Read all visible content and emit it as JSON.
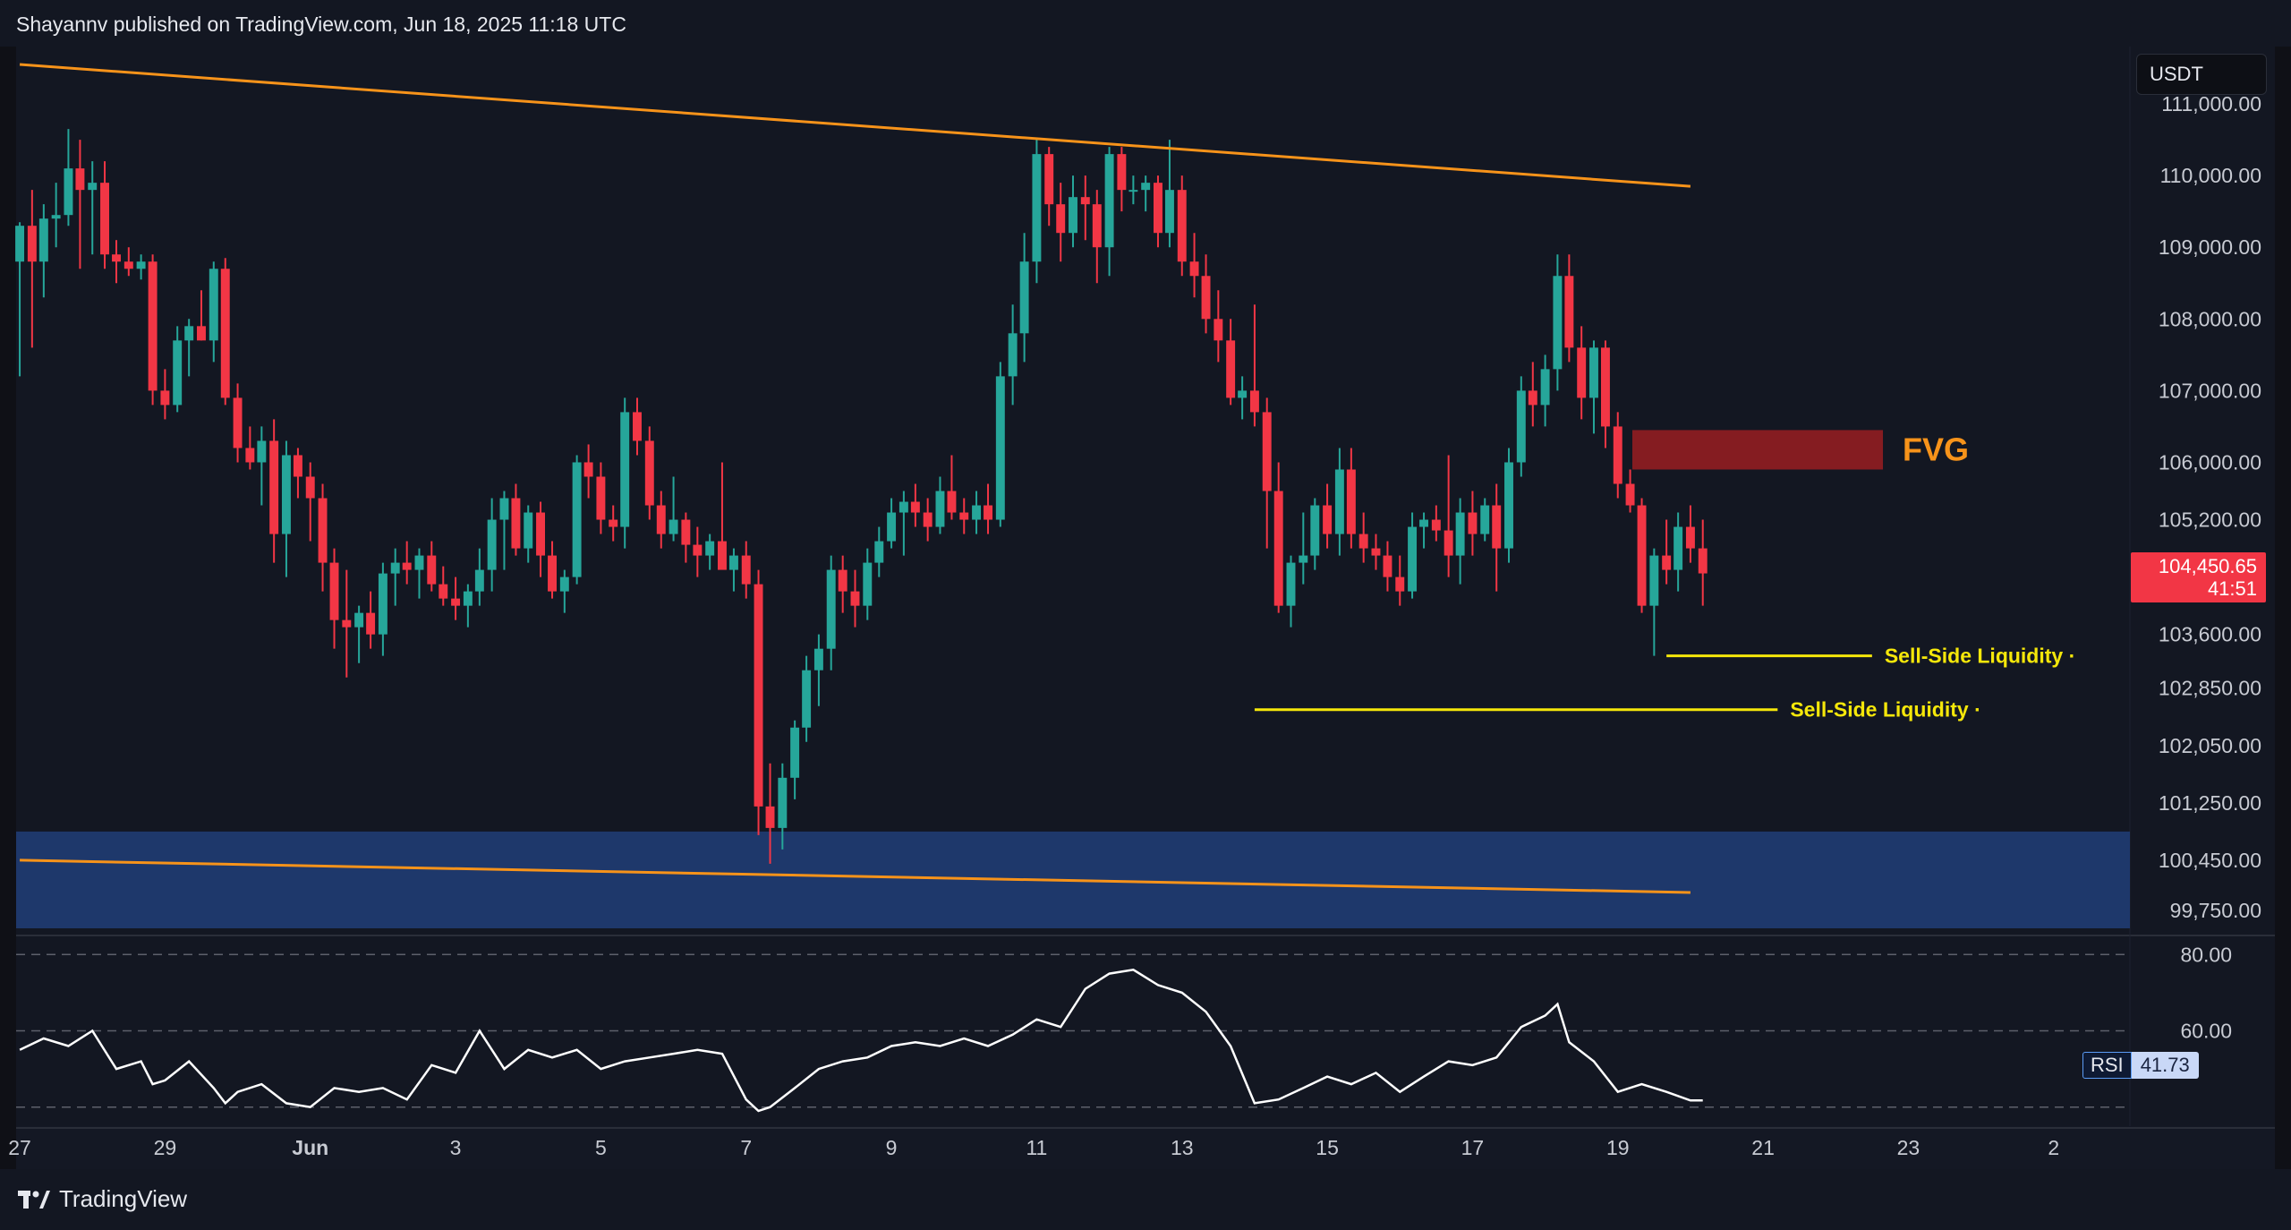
{
  "header": {
    "publisher_text": "Shayannv published on TradingView.com, Jun 18, 2025 11:18 UTC"
  },
  "footer": {
    "brand": "TradingView"
  },
  "price_scale": {
    "currency": "USDT",
    "last_price": "104,450.65",
    "countdown": "41:51"
  },
  "rsi": {
    "label": "RSI",
    "value": "41.73"
  },
  "annotations": {
    "fvg_label": "FVG",
    "liquidity_label_1": "Sell-Side Liquidity",
    "liquidity_label_2": "Sell-Side Liquidity"
  },
  "colors": {
    "up": "#26a69a",
    "down": "#f23645",
    "trendline": "#f7931a",
    "liquidity_line": "#f5e70a",
    "support_zone": "#1f3a70",
    "fvg_zone": "#8b1c22",
    "rsi_line": "#ffffff"
  },
  "chart_data": {
    "type": "candlestick",
    "x_axis": {
      "tick_labels": [
        "27",
        "29",
        "Jun",
        "3",
        "5",
        "7",
        "9",
        "11",
        "13",
        "15",
        "17",
        "19",
        "21",
        "23",
        "2"
      ],
      "tick_days": [
        -4,
        -2,
        0,
        2,
        4,
        6,
        8,
        10,
        12,
        14,
        16,
        18,
        20,
        22,
        24
      ],
      "domain_days": [
        -4.05,
        25.05
      ],
      "month_label_style": "bold"
    },
    "y_axis": {
      "tick_labels": [
        "111,000.00",
        "110,000.00",
        "109,000.00",
        "108,000.00",
        "107,000.00",
        "106,000.00",
        "105,200.00",
        "104,450.65",
        "103,600.00",
        "102,850.00",
        "102,050.00",
        "101,250.00",
        "100,450.00",
        "99,750.00"
      ],
      "tick_values": [
        111000,
        110000,
        109000,
        108000,
        107000,
        106000,
        105200,
        104450.65,
        103600,
        102850,
        102050,
        101250,
        100450,
        99750
      ],
      "range": [
        99400,
        111800
      ]
    },
    "candles": [
      [
        -4.0,
        108800,
        109350,
        107200,
        109300
      ],
      [
        -3.83,
        109300,
        109800,
        107600,
        108800
      ],
      [
        -3.67,
        108800,
        109600,
        108300,
        109400
      ],
      [
        -3.5,
        109400,
        109900,
        109000,
        109450
      ],
      [
        -3.33,
        109450,
        110650,
        109300,
        110100
      ],
      [
        -3.17,
        110100,
        110500,
        108700,
        109800
      ],
      [
        -3.0,
        109800,
        110200,
        108900,
        109900
      ],
      [
        -2.83,
        109900,
        110200,
        108700,
        108900
      ],
      [
        -2.67,
        108900,
        109100,
        108500,
        108800
      ],
      [
        -2.5,
        108800,
        109000,
        108600,
        108700
      ],
      [
        -2.33,
        108700,
        108900,
        108550,
        108800
      ],
      [
        -2.17,
        108800,
        108900,
        106800,
        107000
      ],
      [
        -2.0,
        107000,
        107300,
        106600,
        106800
      ],
      [
        -1.83,
        106800,
        107900,
        106700,
        107700
      ],
      [
        -1.67,
        107700,
        108000,
        107200,
        107900
      ],
      [
        -1.5,
        107900,
        108400,
        107700,
        107700
      ],
      [
        -1.33,
        107700,
        108800,
        107400,
        108700
      ],
      [
        -1.17,
        108700,
        108850,
        106800,
        106900
      ],
      [
        -1.0,
        106900,
        107100,
        106000,
        106200
      ],
      [
        -0.83,
        106200,
        106500,
        105900,
        106000
      ],
      [
        -0.67,
        106000,
        106500,
        105400,
        106300
      ],
      [
        -0.5,
        106300,
        106600,
        104600,
        105000
      ],
      [
        -0.33,
        105000,
        106300,
        104400,
        106100
      ],
      [
        -0.17,
        106100,
        106200,
        105500,
        105800
      ],
      [
        0.0,
        105800,
        106000,
        104900,
        105500
      ],
      [
        0.17,
        105500,
        105700,
        104200,
        104600
      ],
      [
        0.33,
        104600,
        104800,
        103400,
        103800
      ],
      [
        0.5,
        103800,
        104500,
        103000,
        103700
      ],
      [
        0.67,
        103700,
        104000,
        103200,
        103900
      ],
      [
        0.83,
        103900,
        104200,
        103400,
        103600
      ],
      [
        1.0,
        103600,
        104600,
        103300,
        104450
      ],
      [
        1.17,
        104450,
        104800,
        104000,
        104600
      ],
      [
        1.33,
        104600,
        104900,
        104300,
        104500
      ],
      [
        1.5,
        104500,
        104800,
        104100,
        104700
      ],
      [
        1.67,
        104700,
        104900,
        104200,
        104300
      ],
      [
        1.83,
        104300,
        104550,
        104000,
        104100
      ],
      [
        2.0,
        104100,
        104400,
        103800,
        104000
      ],
      [
        2.17,
        104000,
        104300,
        103700,
        104200
      ],
      [
        2.33,
        104200,
        104800,
        104000,
        104500
      ],
      [
        2.5,
        104500,
        105500,
        104200,
        105200
      ],
      [
        2.67,
        105200,
        105600,
        104500,
        105500
      ],
      [
        2.83,
        105500,
        105700,
        104700,
        104800
      ],
      [
        3.0,
        104800,
        105400,
        104600,
        105300
      ],
      [
        3.17,
        105300,
        105450,
        104400,
        104700
      ],
      [
        3.33,
        104700,
        104900,
        104100,
        104200
      ],
      [
        3.5,
        104200,
        104500,
        103900,
        104400
      ],
      [
        3.67,
        104400,
        106100,
        104300,
        106000
      ],
      [
        3.83,
        106000,
        106250,
        105500,
        105800
      ],
      [
        4.0,
        105800,
        106000,
        105000,
        105200
      ],
      [
        4.17,
        105200,
        105400,
        104900,
        105100
      ],
      [
        4.33,
        105100,
        106900,
        104800,
        106700
      ],
      [
        4.5,
        106700,
        106900,
        106100,
        106300
      ],
      [
        4.67,
        106300,
        106500,
        105200,
        105400
      ],
      [
        4.83,
        105400,
        105600,
        104800,
        105000
      ],
      [
        5.0,
        105000,
        105800,
        104900,
        105200
      ],
      [
        5.17,
        105200,
        105300,
        104600,
        104850
      ],
      [
        5.33,
        104850,
        105100,
        104400,
        104700
      ],
      [
        5.5,
        104700,
        105000,
        104500,
        104900
      ],
      [
        5.67,
        104900,
        106000,
        104600,
        104500
      ],
      [
        5.83,
        104500,
        104800,
        104200,
        104700
      ],
      [
        6.0,
        104700,
        104900,
        104100,
        104300
      ],
      [
        6.17,
        104300,
        104500,
        100800,
        101200
      ],
      [
        6.33,
        101200,
        101800,
        100400,
        100900
      ],
      [
        6.5,
        100900,
        101800,
        100600,
        101600
      ],
      [
        6.67,
        101600,
        102400,
        101300,
        102300
      ],
      [
        6.83,
        102300,
        103300,
        102100,
        103100
      ],
      [
        7.0,
        103100,
        103600,
        102600,
        103400
      ],
      [
        7.17,
        103400,
        104700,
        103100,
        104500
      ],
      [
        7.33,
        104500,
        104700,
        103900,
        104200
      ],
      [
        7.5,
        104200,
        104500,
        103700,
        104000
      ],
      [
        7.67,
        104000,
        104800,
        103800,
        104600
      ],
      [
        7.83,
        104600,
        105100,
        104400,
        104900
      ],
      [
        8.0,
        104900,
        105500,
        104800,
        105300
      ],
      [
        8.17,
        105300,
        105600,
        104700,
        105450
      ],
      [
        8.33,
        105450,
        105700,
        105100,
        105300
      ],
      [
        8.5,
        105300,
        105500,
        104900,
        105100
      ],
      [
        8.67,
        105100,
        105800,
        105000,
        105600
      ],
      [
        8.83,
        105600,
        106100,
        105200,
        105300
      ],
      [
        9.0,
        105300,
        105500,
        105000,
        105200
      ],
      [
        9.17,
        105200,
        105600,
        105000,
        105400
      ],
      [
        9.33,
        105400,
        105700,
        105000,
        105200
      ],
      [
        9.5,
        105200,
        107400,
        105100,
        107200
      ],
      [
        9.67,
        107200,
        108200,
        106800,
        107800
      ],
      [
        9.83,
        107800,
        109200,
        107400,
        108800
      ],
      [
        10.0,
        108800,
        110500,
        108500,
        110300
      ],
      [
        10.17,
        110300,
        110400,
        109300,
        109600
      ],
      [
        10.33,
        109600,
        109900,
        108800,
        109200
      ],
      [
        10.5,
        109200,
        110000,
        109000,
        109700
      ],
      [
        10.67,
        109700,
        110000,
        109100,
        109600
      ],
      [
        10.83,
        109600,
        109800,
        108500,
        109000
      ],
      [
        11.0,
        109000,
        110400,
        108600,
        110300
      ],
      [
        11.17,
        110300,
        110400,
        109500,
        109800
      ],
      [
        11.33,
        109800,
        110000,
        109600,
        109800
      ],
      [
        11.5,
        109800,
        110000,
        109500,
        109900
      ],
      [
        11.67,
        109900,
        110000,
        109000,
        109200
      ],
      [
        11.83,
        109200,
        110500,
        109000,
        109800
      ],
      [
        12.0,
        109800,
        110000,
        108600,
        108800
      ],
      [
        12.17,
        108800,
        109200,
        108300,
        108600
      ],
      [
        12.33,
        108600,
        108900,
        107800,
        108000
      ],
      [
        12.5,
        108000,
        108400,
        107400,
        107700
      ],
      [
        12.67,
        107700,
        108000,
        106800,
        106900
      ],
      [
        12.83,
        106900,
        107200,
        106600,
        107000
      ],
      [
        13.0,
        107000,
        108200,
        106500,
        106700
      ],
      [
        13.17,
        106700,
        106900,
        104800,
        105600
      ],
      [
        13.33,
        105600,
        106000,
        103900,
        104000
      ],
      [
        13.5,
        104000,
        104700,
        103700,
        104600
      ],
      [
        13.67,
        104600,
        105300,
        104300,
        104700
      ],
      [
        13.83,
        104700,
        105500,
        104500,
        105400
      ],
      [
        14.0,
        105400,
        105700,
        104800,
        105000
      ],
      [
        14.17,
        105000,
        106200,
        104700,
        105900
      ],
      [
        14.33,
        105900,
        106200,
        104800,
        105000
      ],
      [
        14.5,
        105000,
        105300,
        104600,
        104800
      ],
      [
        14.67,
        104800,
        105000,
        104500,
        104700
      ],
      [
        14.83,
        104700,
        104900,
        104200,
        104400
      ],
      [
        15.0,
        104400,
        104700,
        104000,
        104200
      ],
      [
        15.17,
        104200,
        105300,
        104100,
        105100
      ],
      [
        15.33,
        105100,
        105300,
        104800,
        105200
      ],
      [
        15.5,
        105200,
        105400,
        104900,
        105050
      ],
      [
        15.67,
        105050,
        106100,
        104400,
        104700
      ],
      [
        15.83,
        104700,
        105500,
        104300,
        105300
      ],
      [
        16.0,
        105300,
        105600,
        104700,
        105000
      ],
      [
        16.17,
        105000,
        105500,
        104900,
        105400
      ],
      [
        16.33,
        105400,
        105700,
        104200,
        104800
      ],
      [
        16.5,
        104800,
        106200,
        104600,
        106000
      ],
      [
        16.67,
        106000,
        107200,
        105800,
        107000
      ],
      [
        16.83,
        107000,
        107400,
        106500,
        106800
      ],
      [
        17.0,
        106800,
        107500,
        106500,
        107300
      ],
      [
        17.17,
        107300,
        108900,
        107000,
        108600
      ],
      [
        17.33,
        108600,
        108900,
        107400,
        107600
      ],
      [
        17.5,
        107600,
        107900,
        106600,
        106900
      ],
      [
        17.67,
        106900,
        107700,
        106400,
        107600
      ],
      [
        17.83,
        107600,
        107700,
        106200,
        106500
      ],
      [
        18.0,
        106500,
        106700,
        105500,
        105700
      ],
      [
        18.17,
        105700,
        105900,
        105300,
        105400
      ],
      [
        18.33,
        105400,
        105500,
        103900,
        104000
      ],
      [
        18.5,
        104000,
        104800,
        103300,
        104700
      ],
      [
        18.67,
        104700,
        105200,
        104300,
        104500
      ],
      [
        18.83,
        104500,
        105300,
        104200,
        105100
      ],
      [
        19.0,
        105100,
        105400,
        104600,
        104800
      ],
      [
        19.17,
        104800,
        105200,
        104000,
        104450.65
      ]
    ],
    "upper_trendline": [
      [
        -4.0,
        111550
      ],
      [
        19.0,
        109850
      ]
    ],
    "lower_trendline": [
      [
        -4.0,
        100450
      ],
      [
        19.0,
        100000
      ]
    ],
    "support_zone": {
      "y_low": 99500,
      "y_high": 100850,
      "x_from": -4.05,
      "x_to": 25.05
    },
    "fvg_zone": {
      "y_low": 105900,
      "y_high": 106450,
      "x_from": 18.2,
      "x_to": 21.65
    },
    "liquidity_lines": [
      {
        "y": 103300,
        "x_from": 18.67,
        "x_to": 21.5
      },
      {
        "y": 102550,
        "x_from": 13.0,
        "x_to": 20.2
      }
    ],
    "rsi": {
      "levels": [
        80,
        60,
        40
      ],
      "tick_labels": [
        "80.00",
        "60.00"
      ],
      "tick_values": [
        80,
        60
      ],
      "range": [
        35,
        85
      ],
      "x": [
        -4.0,
        -3.67,
        -3.33,
        -3.0,
        -2.67,
        -2.33,
        -2.17,
        -2.0,
        -1.67,
        -1.33,
        -1.17,
        -1.0,
        -0.67,
        -0.33,
        0.0,
        0.33,
        0.67,
        1.0,
        1.33,
        1.67,
        2.0,
        2.33,
        2.67,
        3.0,
        3.33,
        3.67,
        4.0,
        4.33,
        4.67,
        5.0,
        5.33,
        5.67,
        6.0,
        6.17,
        6.33,
        6.67,
        7.0,
        7.33,
        7.67,
        8.0,
        8.33,
        8.67,
        9.0,
        9.33,
        9.67,
        10.0,
        10.33,
        10.67,
        11.0,
        11.33,
        11.67,
        12.0,
        12.33,
        12.67,
        13.0,
        13.33,
        13.67,
        14.0,
        14.33,
        14.67,
        15.0,
        15.33,
        15.67,
        16.0,
        16.33,
        16.67,
        17.0,
        17.17,
        17.33,
        17.67,
        18.0,
        18.33,
        18.67,
        19.0,
        19.17
      ],
      "values": [
        55,
        58,
        56,
        60,
        50,
        52,
        46,
        47,
        52,
        45,
        41,
        44,
        46,
        41,
        40,
        45,
        44,
        45,
        42,
        51,
        49,
        60,
        50,
        55,
        53,
        55,
        50,
        52,
        53,
        54,
        55,
        54,
        42,
        39,
        40,
        45,
        50,
        52,
        53,
        56,
        57,
        56,
        58,
        56,
        59,
        63,
        61,
        71,
        75,
        76,
        72,
        70,
        65,
        56,
        41,
        42,
        45,
        48,
        46,
        49,
        44,
        48,
        52,
        51,
        53,
        61,
        64,
        67,
        57,
        52,
        44,
        46,
        44,
        41.73,
        41.73
      ]
    }
  }
}
